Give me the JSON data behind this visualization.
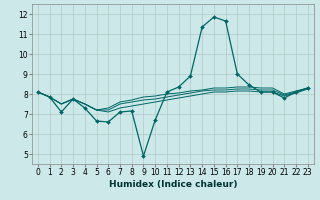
{
  "xlabel": "Humidex (Indice chaleur)",
  "background_color": "#cce8e8",
  "grid_color": "#b0c8c8",
  "line_color": "#006666",
  "xlim": [
    -0.5,
    23.5
  ],
  "ylim": [
    4.5,
    12.5
  ],
  "xticks": [
    0,
    1,
    2,
    3,
    4,
    5,
    6,
    7,
    8,
    9,
    10,
    11,
    12,
    13,
    14,
    15,
    16,
    17,
    18,
    19,
    20,
    21,
    22,
    23
  ],
  "yticks": [
    5,
    6,
    7,
    8,
    9,
    10,
    11,
    12
  ],
  "series_main": {
    "x": [
      0,
      1,
      2,
      3,
      4,
      5,
      6,
      7,
      8,
      9,
      10,
      11,
      12,
      13,
      14,
      15,
      16,
      17,
      18,
      19,
      20,
      21,
      22,
      23
    ],
    "y": [
      8.1,
      7.85,
      7.1,
      7.75,
      7.3,
      6.65,
      6.6,
      7.1,
      7.15,
      4.9,
      6.7,
      8.1,
      8.35,
      8.9,
      11.35,
      11.85,
      11.65,
      9.0,
      8.45,
      8.1,
      8.1,
      7.8,
      8.1,
      8.3
    ]
  },
  "series_smooth": [
    {
      "x": [
        0,
        1,
        2,
        3,
        4,
        5,
        6,
        7,
        8,
        9,
        10,
        11,
        12,
        13,
        14,
        15,
        16,
        17,
        18,
        19,
        20,
        21,
        22,
        23
      ],
      "y": [
        8.1,
        7.85,
        7.5,
        7.75,
        7.5,
        7.2,
        7.1,
        7.3,
        7.4,
        7.5,
        7.6,
        7.7,
        7.8,
        7.9,
        8.0,
        8.1,
        8.1,
        8.15,
        8.15,
        8.1,
        8.1,
        7.9,
        8.05,
        8.25
      ]
    },
    {
      "x": [
        0,
        1,
        2,
        3,
        4,
        5,
        6,
        7,
        8,
        9,
        10,
        11,
        12,
        13,
        14,
        15,
        16,
        17,
        18,
        19,
        20,
        21,
        22,
        23
      ],
      "y": [
        8.1,
        7.85,
        7.5,
        7.75,
        7.5,
        7.2,
        7.2,
        7.5,
        7.6,
        7.7,
        7.75,
        7.85,
        7.95,
        8.05,
        8.15,
        8.2,
        8.2,
        8.25,
        8.25,
        8.2,
        8.2,
        7.95,
        8.1,
        8.3
      ]
    },
    {
      "x": [
        0,
        1,
        2,
        3,
        4,
        5,
        6,
        7,
        8,
        9,
        10,
        11,
        12,
        13,
        14,
        15,
        16,
        17,
        18,
        19,
        20,
        21,
        22,
        23
      ],
      "y": [
        8.1,
        7.85,
        7.5,
        7.75,
        7.5,
        7.2,
        7.3,
        7.6,
        7.7,
        7.85,
        7.9,
        8.0,
        8.05,
        8.15,
        8.2,
        8.3,
        8.3,
        8.35,
        8.35,
        8.3,
        8.3,
        8.0,
        8.15,
        8.3
      ]
    }
  ]
}
